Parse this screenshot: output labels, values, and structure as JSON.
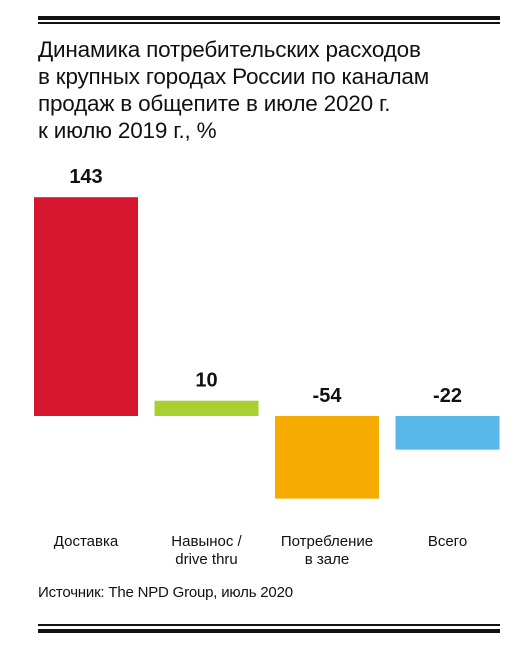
{
  "title_lines": [
    "Динамика потребительских расходов",
    "в крупных городах России по каналам",
    "продаж в общепите в июле 2020 г.",
    "к июлю 2019 г., %"
  ],
  "source": "Источник: The NPD Group, июль 2020",
  "chart_data": {
    "type": "bar",
    "categories": [
      [
        "Доставка"
      ],
      [
        "Навынос /",
        "drive thru"
      ],
      [
        "Потребление",
        "в зале"
      ],
      [
        "Всего"
      ]
    ],
    "values": [
      143,
      10,
      -54,
      -22
    ],
    "value_labels": [
      "143",
      "10",
      "-54",
      "-22"
    ],
    "colors": [
      "#d5162e",
      "#a9cf30",
      "#f5ab00",
      "#58b8e9"
    ],
    "ylim": [
      -60,
      150
    ],
    "grid": false,
    "title": "",
    "xlabel": "",
    "ylabel": ""
  }
}
